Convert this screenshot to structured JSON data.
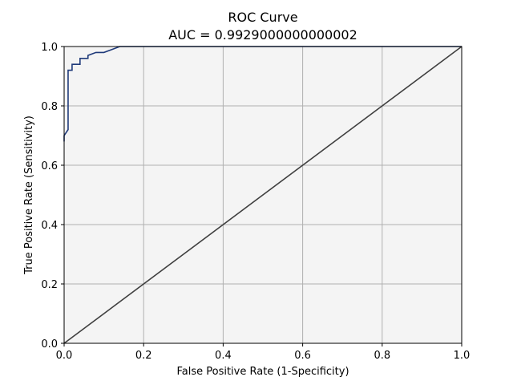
{
  "chart_data": {
    "type": "line",
    "title": "ROC Curve",
    "subtitle": "AUC = 0.9929000000000002",
    "xlabel": "False Positive Rate (1-Specificity)",
    "ylabel": "True Positive Rate (Sensitivity)",
    "xlim": [
      0.0,
      1.0
    ],
    "ylim": [
      0.0,
      1.0
    ],
    "xticks": [
      "0.0",
      "0.2",
      "0.4",
      "0.6",
      "0.8",
      "1.0"
    ],
    "yticks": [
      "0.0",
      "0.2",
      "0.4",
      "0.6",
      "0.8",
      "1.0"
    ],
    "grid": true,
    "series": [
      {
        "color": "#1f3a7a",
        "x": [
          0.0,
          0.0,
          0.01,
          0.01,
          0.01,
          0.02,
          0.02,
          0.03,
          0.04,
          0.04,
          0.06,
          0.06,
          0.08,
          0.1,
          0.1,
          0.12,
          0.14,
          1.0
        ],
        "y": [
          0.68,
          0.7,
          0.72,
          0.88,
          0.92,
          0.92,
          0.94,
          0.94,
          0.94,
          0.96,
          0.96,
          0.97,
          0.98,
          0.98,
          0.98,
          0.99,
          1.0,
          1.0
        ]
      },
      {
        "color": "#404040",
        "x": [
          0.0,
          1.0
        ],
        "y": [
          0.0,
          1.0
        ]
      }
    ]
  }
}
